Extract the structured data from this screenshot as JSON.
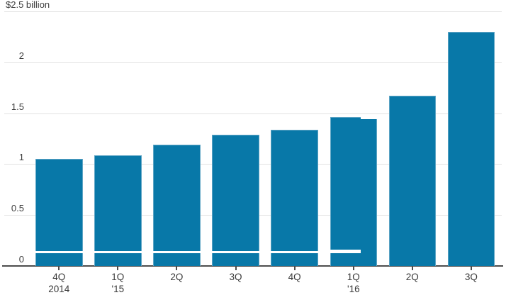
{
  "chart": {
    "y_axis": {
      "ticks": [
        {
          "label": "$2.5 billion",
          "value": 2.5,
          "style": "top-left"
        },
        {
          "label": "2",
          "value": 2.0,
          "style": "num"
        },
        {
          "label": "1.5",
          "value": 1.5,
          "style": "num"
        },
        {
          "label": "1",
          "value": 1.0,
          "style": "num"
        },
        {
          "label": "0.5",
          "value": 0.5,
          "style": "num"
        },
        {
          "label": "0",
          "value": 0.0,
          "style": "num"
        }
      ]
    },
    "x_axis": {
      "labels": [
        {
          "line1": "4Q",
          "line2": "2014"
        },
        {
          "line1": "1Q",
          "line2": "'15"
        },
        {
          "line1": "2Q",
          "line2": ""
        },
        {
          "line1": "3Q",
          "line2": ""
        },
        {
          "line1": "4Q",
          "line2": ""
        },
        {
          "line1": "1Q",
          "line2": "'16"
        },
        {
          "line1": "2Q",
          "line2": ""
        },
        {
          "line1": "3Q",
          "line2": ""
        }
      ]
    },
    "bars": [
      {
        "value": 1.05,
        "white_tick": "full"
      },
      {
        "value": 1.09,
        "white_tick": "full"
      },
      {
        "value": 1.19,
        "white_tick": "full"
      },
      {
        "value": 1.29,
        "white_tick": "full"
      },
      {
        "value": 1.34,
        "white_tick": "full"
      },
      {
        "value": 1.46,
        "value_right": 1.44,
        "split_fraction": 0.65,
        "white_tick": "partial"
      },
      {
        "value": 1.67,
        "white_tick": "none"
      },
      {
        "value": 2.3,
        "white_tick": "none"
      }
    ]
  },
  "chart_data": {
    "type": "bar",
    "categories": [
      "4Q 2014",
      "1Q '15",
      "2Q",
      "3Q",
      "4Q",
      "1Q '16",
      "2Q",
      "3Q"
    ],
    "values": [
      1.05,
      1.09,
      1.19,
      1.29,
      1.34,
      1.46,
      1.67,
      2.3
    ],
    "title": "",
    "xlabel": "",
    "ylabel": "$ billion",
    "ylim": [
      0,
      2.5
    ],
    "y_tick_labels": [
      "$2.5 billion",
      "2",
      "1.5",
      "1",
      "0.5",
      "0"
    ],
    "grid": true,
    "legend": "none",
    "bar_color": "#0878a8"
  },
  "colors": {
    "bar": "#0878a8",
    "bar_edge": "#5fa5c5",
    "gridline": "#e3e3e3",
    "axis": "#4d4d4d",
    "text": "#3d3d3d",
    "background": "#ffffff"
  }
}
